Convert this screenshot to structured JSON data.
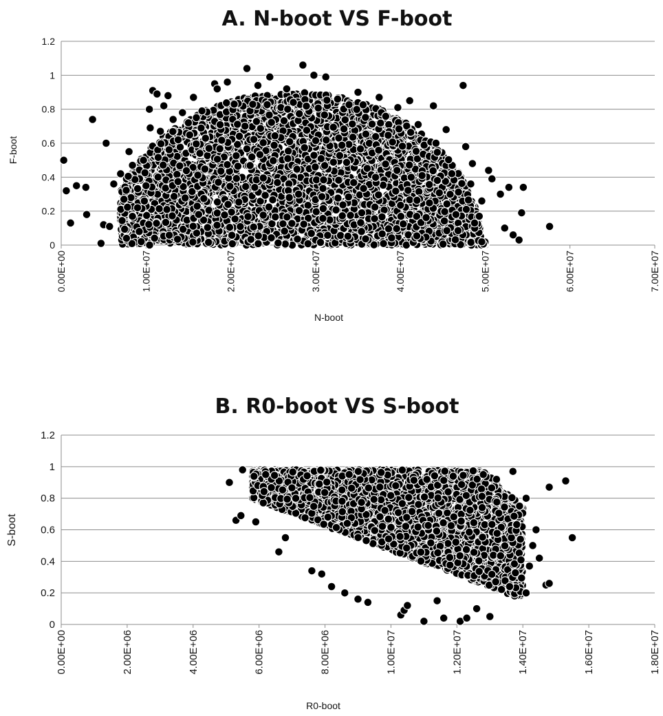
{
  "chart_data": [
    {
      "type": "scatter",
      "title": "A. N-boot VS F-boot",
      "xlabel": "N-boot",
      "ylabel": "F-boot",
      "xlim": [
        0,
        70000000
      ],
      "ylim": [
        0,
        1.2
      ],
      "x_ticks": [
        "0.00E+00",
        "1.00E+07",
        "2.00E+07",
        "3.00E+07",
        "4.00E+07",
        "5.00E+07",
        "6.00E+07",
        "7.00E+07"
      ],
      "y_ticks": [
        "0",
        "0.2",
        "0.4",
        "0.6",
        "0.8",
        "1",
        "1.2"
      ],
      "grid": "horizontal",
      "marker_color": "#000000",
      "series": [
        {
          "points": [
            [
              300000,
              0.5
            ],
            [
              600000,
              0.32
            ],
            [
              1100000,
              0.13
            ],
            [
              1800000,
              0.35
            ],
            [
              2900000,
              0.34
            ],
            [
              3000000,
              0.18
            ],
            [
              3700000,
              0.74
            ],
            [
              4700000,
              0.01
            ],
            [
              5000000,
              0.12
            ],
            [
              5300000,
              0.6
            ],
            [
              5700000,
              0.11
            ],
            [
              6200000,
              0.36
            ],
            [
              7000000,
              0.42
            ],
            [
              7400000,
              0.27
            ],
            [
              7700000,
              0.04
            ],
            [
              8000000,
              0.55
            ],
            [
              8400000,
              0.47
            ],
            [
              9200000,
              0.08
            ],
            [
              9700000,
              0.5
            ],
            [
              10400000,
              0.8
            ],
            [
              10500000,
              0.69
            ],
            [
              10800000,
              0.91
            ],
            [
              11300000,
              0.89
            ],
            [
              11700000,
              0.67
            ],
            [
              12100000,
              0.82
            ],
            [
              12600000,
              0.88
            ],
            [
              13200000,
              0.74
            ],
            [
              13800000,
              0.62
            ],
            [
              14300000,
              0.78
            ],
            [
              15600000,
              0.87
            ],
            [
              16600000,
              0.79
            ],
            [
              18100000,
              0.95
            ],
            [
              18400000,
              0.92
            ],
            [
              19600000,
              0.96
            ],
            [
              20400000,
              0.83
            ],
            [
              21900000,
              1.04
            ],
            [
              23200000,
              0.94
            ],
            [
              24600000,
              0.99
            ],
            [
              26600000,
              0.92
            ],
            [
              28500000,
              1.06
            ],
            [
              29800000,
              1.0
            ],
            [
              31200000,
              0.99
            ],
            [
              32600000,
              0.86
            ],
            [
              35000000,
              0.9
            ],
            [
              37500000,
              0.87
            ],
            [
              39700000,
              0.81
            ],
            [
              41100000,
              0.85
            ],
            [
              43900000,
              0.82
            ],
            [
              45400000,
              0.68
            ],
            [
              47400000,
              0.94
            ],
            [
              47700000,
              0.58
            ],
            [
              48300000,
              0.36
            ],
            [
              49600000,
              0.26
            ],
            [
              50400000,
              0.44
            ],
            [
              50800000,
              0.39
            ],
            [
              51800000,
              0.3
            ],
            [
              52300000,
              0.1
            ],
            [
              52800000,
              0.34
            ],
            [
              53300000,
              0.06
            ],
            [
              54000000,
              0.03
            ],
            [
              54300000,
              0.19
            ],
            [
              54500000,
              0.34
            ],
            [
              57600000,
              0.11
            ],
            [
              49300000,
              0.17
            ],
            [
              48500000,
              0.48
            ],
            [
              44200000,
              0.6
            ],
            [
              42100000,
              0.71
            ],
            [
              15000000,
              0.72
            ],
            [
              9000000,
              0.22
            ],
            [
              10000000,
              0.35
            ]
          ],
          "dense_cloud": {
            "description": "thousands of overlapping bootstrap points",
            "x_range": [
              7000000,
              50000000
            ],
            "y_range": [
              0,
              0.9
            ],
            "center_x": 27500000,
            "half_width_x": 22000000,
            "max_y": 0.9
          }
        }
      ]
    },
    {
      "type": "scatter",
      "title": "B. R0-boot VS S-boot",
      "xlabel": "R0-boot",
      "ylabel": "S-boot",
      "xlim": [
        0,
        18000000
      ],
      "ylim": [
        0,
        1.2
      ],
      "x_ticks": [
        "0.00E+00",
        "2.00E+06",
        "4.00E+06",
        "6.00E+06",
        "8.00E+06",
        "1.00E+07",
        "1.20E+07",
        "1.40E+07",
        "1.60E+07",
        "1.80E+07"
      ],
      "y_ticks": [
        "0",
        "0.2",
        "0.4",
        "0.6",
        "0.8",
        "1",
        "1.2"
      ],
      "grid": "horizontal",
      "marker_color": "#000000",
      "series": [
        {
          "points": [
            [
              5100000,
              0.9
            ],
            [
              5300000,
              0.66
            ],
            [
              5450000,
              0.69
            ],
            [
              5500000,
              0.98
            ],
            [
              5900000,
              0.65
            ],
            [
              6600000,
              0.46
            ],
            [
              6800000,
              0.55
            ],
            [
              7600000,
              0.34
            ],
            [
              7900000,
              0.32
            ],
            [
              8200000,
              0.24
            ],
            [
              8600000,
              0.2
            ],
            [
              9000000,
              0.16
            ],
            [
              9300000,
              0.14
            ],
            [
              10300000,
              0.06
            ],
            [
              10400000,
              0.09
            ],
            [
              10500000,
              0.12
            ],
            [
              11000000,
              0.02
            ],
            [
              11400000,
              0.15
            ],
            [
              11600000,
              0.04
            ],
            [
              12100000,
              0.02
            ],
            [
              12300000,
              0.04
            ],
            [
              12600000,
              0.1
            ],
            [
              13000000,
              0.05
            ],
            [
              13600000,
              0.24
            ],
            [
              13700000,
              0.97
            ],
            [
              14100000,
              0.8
            ],
            [
              14200000,
              0.37
            ],
            [
              14100000,
              0.2
            ],
            [
              14300000,
              0.5
            ],
            [
              14400000,
              0.6
            ],
            [
              14500000,
              0.42
            ],
            [
              14700000,
              0.25
            ],
            [
              14800000,
              0.26
            ],
            [
              14800000,
              0.87
            ],
            [
              15300000,
              0.91
            ],
            [
              15500000,
              0.55
            ],
            [
              13900000,
              0.75
            ],
            [
              13200000,
              0.92
            ],
            [
              12800000,
              0.95
            ],
            [
              6200000,
              0.95
            ]
          ],
          "dense_cloud": {
            "description": "thousands of overlapping bootstrap points",
            "x_range": [
              5800000,
              14000000
            ],
            "y_range": [
              0.12,
              0.98
            ],
            "y_max": 0.98
          }
        }
      ]
    }
  ]
}
